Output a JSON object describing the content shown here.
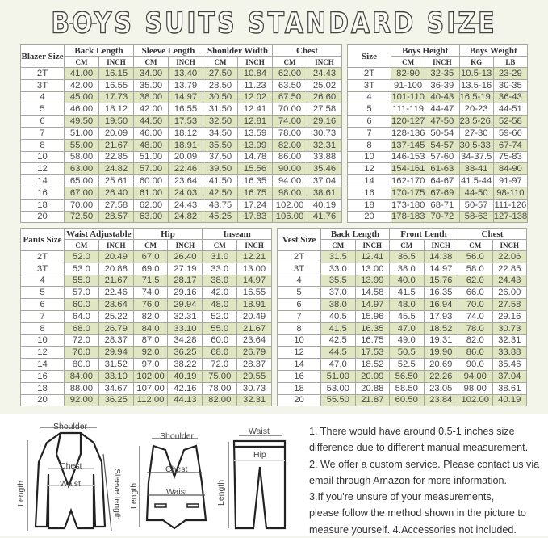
{
  "title": "BOYS SUITS STANDARD SIZE",
  "colors": {
    "highlight": "#dfe6c1",
    "background": "#f4f5ea"
  },
  "blazer": {
    "size_header": "Blazer Size",
    "groups": [
      "Back Length",
      "Sleeve Length",
      "Shoulder Width",
      "Chest"
    ],
    "units": [
      "CM",
      "INCH",
      "CM",
      "INCH",
      "CM",
      "INCH",
      "CM",
      "INCH"
    ],
    "rows": [
      [
        "2T",
        "41.00",
        "16.15",
        "34.00",
        "13.40",
        "27.50",
        "10.84",
        "62.00",
        "24.43"
      ],
      [
        "3T",
        "42.00",
        "16.55",
        "35.00",
        "13.79",
        "28.50",
        "11.23",
        "63.50",
        "25.02"
      ],
      [
        "4",
        "45.00",
        "17.73",
        "38.00",
        "14.97",
        "30.50",
        "12.02",
        "67.50",
        "26.60"
      ],
      [
        "5",
        "46.00",
        "18.12",
        "42.00",
        "16.55",
        "31.50",
        "12.41",
        "70.00",
        "27.58"
      ],
      [
        "6",
        "49.50",
        "19.50",
        "44.50",
        "17.53",
        "32.50",
        "12.81",
        "74.00",
        "29.16"
      ],
      [
        "7",
        "51.00",
        "20.09",
        "46.00",
        "18.12",
        "34.50",
        "13.59",
        "78.00",
        "30.73"
      ],
      [
        "8",
        "55.00",
        "21.67",
        "48.00",
        "18.91",
        "35.50",
        "13.99",
        "82.00",
        "32.31"
      ],
      [
        "10",
        "58.00",
        "22.85",
        "51.00",
        "20.09",
        "37.50",
        "14.78",
        "86.00",
        "33.88"
      ],
      [
        "12",
        "63.00",
        "24.82",
        "57.00",
        "22.46",
        "39.50",
        "15.56",
        "90.00",
        "35.46"
      ],
      [
        "14",
        "65.00",
        "25.61",
        "60.00",
        "23.64",
        "41.50",
        "16.35",
        "94.00",
        "37.04"
      ],
      [
        "16",
        "67.00",
        "26.40",
        "61.00",
        "24.03",
        "42.50",
        "16.75",
        "98.00",
        "38.61"
      ],
      [
        "18",
        "70.00",
        "27.58",
        "62.00",
        "24.43",
        "43.75",
        "17.24",
        "102.00",
        "40.19"
      ],
      [
        "20",
        "72.50",
        "28.57",
        "63.00",
        "24.82",
        "45.25",
        "17.83",
        "106.00",
        "41.76"
      ]
    ]
  },
  "boys": {
    "size_header": "Size",
    "groups": [
      "Boys Height",
      "Boys Weight"
    ],
    "units": [
      "CM",
      "INCH",
      "KG",
      "LB"
    ],
    "rows": [
      [
        "2T",
        "82-90",
        "32-35",
        "10.5-13",
        "23-29"
      ],
      [
        "3T",
        "91-100",
        "36-39",
        "13.5-16",
        "30-35"
      ],
      [
        "4",
        "101-110",
        "40-43",
        "16.5-19.5",
        "36-43"
      ],
      [
        "5",
        "111-119",
        "44-47",
        "20-23",
        "44-51"
      ],
      [
        "6",
        "120-127",
        "47-50",
        "23.5-26.5",
        "52-58"
      ],
      [
        "7",
        "128-136",
        "50-54",
        "27-30",
        "59-66"
      ],
      [
        "8",
        "137-145",
        "54-57",
        "30.5-33.5",
        "67-74"
      ],
      [
        "10",
        "146-153",
        "57-60",
        "34-37.5",
        "75-83"
      ],
      [
        "12",
        "154-161",
        "61-63",
        "38-41",
        "84-90"
      ],
      [
        "14",
        "162-170",
        "64-67",
        "41.5-44",
        "91-97"
      ],
      [
        "16",
        "170-175",
        "67-69",
        "44-50",
        "98-110"
      ],
      [
        "18",
        "173-180",
        "68-71",
        "50-57",
        "111-126"
      ],
      [
        "20",
        "178-183",
        "70-72",
        "58-63",
        "127-138"
      ]
    ]
  },
  "pants": {
    "size_header": "Pants Size",
    "groups": [
      "Waist Adjustable",
      "Hip",
      "Inseam"
    ],
    "units": [
      "CM",
      "INCH",
      "CM",
      "INCH",
      "CM",
      "INCH"
    ],
    "rows": [
      [
        "2T",
        "52.0",
        "20.49",
        "67.0",
        "26.40",
        "31.0",
        "12.21"
      ],
      [
        "3T",
        "53.0",
        "20.88",
        "69.0",
        "27.19",
        "33.0",
        "13.00"
      ],
      [
        "4",
        "55.0",
        "21.67",
        "71.5",
        "28.17",
        "38.0",
        "14.97"
      ],
      [
        "5",
        "57.0",
        "22.46",
        "74.0",
        "29.16",
        "42.0",
        "16.55"
      ],
      [
        "6",
        "60.0",
        "23.64",
        "76.0",
        "29.94",
        "48.0",
        "18.91"
      ],
      [
        "7",
        "64.0",
        "25.22",
        "82.0",
        "32.31",
        "52.0",
        "20.49"
      ],
      [
        "8",
        "68.0",
        "26.79",
        "84.0",
        "33.10",
        "55.0",
        "21.67"
      ],
      [
        "10",
        "72.0",
        "28.37",
        "87.0",
        "34.28",
        "60.0",
        "23.64"
      ],
      [
        "12",
        "76.0",
        "29.94",
        "92.0",
        "36.25",
        "68.0",
        "26.79"
      ],
      [
        "14",
        "80.0",
        "31.52",
        "97.0",
        "38.22",
        "72.0",
        "28.37"
      ],
      [
        "16",
        "84.00",
        "33.10",
        "102.00",
        "40.19",
        "75.00",
        "29.55"
      ],
      [
        "18",
        "88.00",
        "34.67",
        "107.00",
        "42.16",
        "78.00",
        "30.73"
      ],
      [
        "20",
        "92.00",
        "36.25",
        "112.00",
        "44.13",
        "82.00",
        "32.31"
      ]
    ]
  },
  "vest": {
    "size_header": "Vest Size",
    "groups": [
      "Back Length",
      "Front Lenth",
      "Chest"
    ],
    "units": [
      "CM",
      "INCH",
      "CM",
      "INCH",
      "CM",
      "INCH"
    ],
    "rows": [
      [
        "2T",
        "31.5",
        "12.41",
        "36.5",
        "14.38",
        "56.0",
        "22.06"
      ],
      [
        "3T",
        "33.0",
        "13.00",
        "38.0",
        "14.97",
        "58.0",
        "22.85"
      ],
      [
        "4",
        "35.5",
        "13.99",
        "40.0",
        "15.76",
        "62.0",
        "24.43"
      ],
      [
        "5",
        "37.0",
        "14.58",
        "41.5",
        "16.35",
        "66.0",
        "26.00"
      ],
      [
        "6",
        "38.0",
        "14.97",
        "43.0",
        "16.94",
        "70.0",
        "27.58"
      ],
      [
        "7",
        "40.5",
        "15.96",
        "45.5",
        "17.93",
        "74.0",
        "29.16"
      ],
      [
        "8",
        "41.5",
        "16.35",
        "47.0",
        "18.52",
        "78.0",
        "30.73"
      ],
      [
        "10",
        "42.5",
        "16.75",
        "49.0",
        "19.31",
        "82.0",
        "32.31"
      ],
      [
        "12",
        "44.5",
        "17.53",
        "50.5",
        "19.90",
        "86.0",
        "33.88"
      ],
      [
        "14",
        "47.0",
        "18.52",
        "52.5",
        "20.69",
        "90.0",
        "35.46"
      ],
      [
        "16",
        "51.00",
        "20.09",
        "56.50",
        "22.26",
        "94.00",
        "37.04"
      ],
      [
        "18",
        "53.00",
        "20.88",
        "58.50",
        "23.05",
        "98.00",
        "38.61"
      ],
      [
        "20",
        "55.50",
        "21.87",
        "60.50",
        "23.84",
        "102.00",
        "40.19"
      ]
    ]
  },
  "diagram": {
    "blazer": {
      "shoulder": "Shoulder",
      "chest": "Chest",
      "waist": "Waist",
      "length": "Length",
      "sleeve": "Sleeve length"
    },
    "vest": {
      "shoulder": "Shoulder",
      "chest": "Chest",
      "waist": "Waist",
      "length": "Length"
    },
    "pants": {
      "waist": "Waist",
      "hip": "Hip",
      "length": "Length"
    }
  },
  "notes": [
    "1. There would have around 0.5-1 inches size",
    "difference due to different manual measurement.",
    "2. We offer a custom service. Please contact us via",
    "email through Amazon for more information.",
    "3.If you're unsure of your measurements,",
    "please follow the method shown in the picture to",
    "measure yourself. 4.Accessories not included."
  ]
}
